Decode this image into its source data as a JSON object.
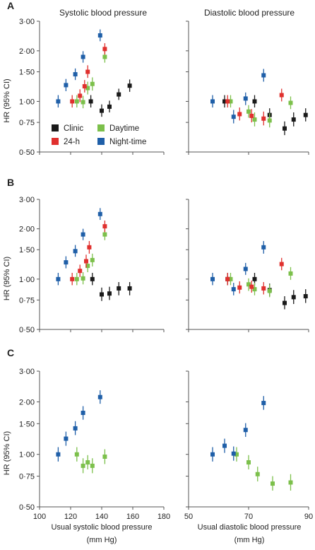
{
  "titles": {
    "left": "Systolic blood pressure",
    "right": "Diastolic blood pressure"
  },
  "panel_labels": [
    "A",
    "B",
    "C"
  ],
  "ylabel": "HR (95% CI)",
  "xlabels": {
    "left_line1": "Usual systolic blood pressure",
    "left_line2": "(mm Hg)",
    "right_line1": "Usual diastolic blood pressure",
    "right_line2": "(mm Hg)"
  },
  "legend": [
    {
      "key": "clinic",
      "label": "Clinic",
      "color": "#1a1a1a"
    },
    {
      "key": "daytime",
      "label": "Daytime",
      "color": "#7cc04b"
    },
    {
      "key": "h24",
      "label": "24-h",
      "color": "#e0302e"
    },
    {
      "key": "night",
      "label": "Night-time",
      "color": "#1f5fa8"
    }
  ],
  "chart_data": [
    {
      "type": "scatter",
      "panel": "A",
      "variable": "systolic",
      "xlim": [
        100,
        180
      ],
      "ylim": [
        0.5,
        3.0
      ],
      "ylog": true,
      "xticks": [
        100,
        120,
        140,
        160,
        180
      ],
      "yticks": [
        {
          "v": 0.5,
          "label": "0·50"
        },
        {
          "v": 0.75,
          "label": "0·75"
        },
        {
          "v": 1.0,
          "label": "1·00"
        },
        {
          "v": 1.5,
          "label": "1·50"
        },
        {
          "v": 2.0,
          "label": "2·00"
        },
        {
          "v": 3.0,
          "label": "3·00"
        }
      ],
      "series": [
        {
          "key": "clinic",
          "points": [
            [
              133,
              1.0,
              0.92,
              1.09
            ],
            [
              140,
              0.88,
              0.81,
              0.96
            ],
            [
              145,
              0.93,
              0.86,
              1.01
            ],
            [
              151,
              1.1,
              1.02,
              1.19
            ],
            [
              158,
              1.24,
              1.14,
              1.35
            ]
          ]
        },
        {
          "key": "daytime",
          "points": [
            [
              124,
              1.0,
              0.92,
              1.09
            ],
            [
              128,
              0.99,
              0.91,
              1.08
            ],
            [
              131,
              1.2,
              1.1,
              1.31
            ],
            [
              134,
              1.27,
              1.16,
              1.39
            ],
            [
              142,
              1.84,
              1.7,
              2.0
            ]
          ]
        },
        {
          "key": "h24",
          "points": [
            [
              121,
              1.0,
              0.92,
              1.09
            ],
            [
              126,
              1.08,
              0.99,
              1.18
            ],
            [
              129,
              1.23,
              1.13,
              1.34
            ],
            [
              131,
              1.5,
              1.38,
              1.64
            ],
            [
              142,
              2.05,
              1.9,
              2.22
            ]
          ]
        },
        {
          "key": "night",
          "points": [
            [
              112,
              1.0,
              0.92,
              1.09
            ],
            [
              117,
              1.25,
              1.15,
              1.36
            ],
            [
              123,
              1.45,
              1.34,
              1.57
            ],
            [
              128,
              1.84,
              1.7,
              1.99
            ],
            [
              139,
              2.47,
              2.28,
              2.68
            ]
          ]
        }
      ]
    },
    {
      "type": "scatter",
      "panel": "A",
      "variable": "diastolic",
      "xlim": [
        50,
        90
      ],
      "ylim": [
        0.5,
        3.0
      ],
      "ylog": true,
      "xticks": [
        50,
        70,
        90
      ],
      "yticks": [
        {
          "v": 0.5,
          "label": "0·50"
        },
        {
          "v": 0.75,
          "label": "0·75"
        },
        {
          "v": 1.0,
          "label": "1·00"
        },
        {
          "v": 1.5,
          "label": "1·50"
        },
        {
          "v": 2.0,
          "label": "2·00"
        },
        {
          "v": 3.0,
          "label": "3·00"
        }
      ],
      "series": [
        {
          "key": "clinic",
          "points": [
            [
              62,
              1.0,
              0.92,
              1.09
            ],
            [
              72,
              1.0,
              0.92,
              1.09
            ],
            [
              77,
              0.83,
              0.76,
              0.91
            ],
            [
              82,
              0.69,
              0.63,
              0.76
            ],
            [
              85,
              0.78,
              0.71,
              0.86
            ],
            [
              89,
              0.83,
              0.76,
              0.91
            ]
          ]
        },
        {
          "key": "daytime",
          "points": [
            [
              64,
              1.0,
              0.92,
              1.09
            ],
            [
              70,
              0.87,
              0.8,
              0.95
            ],
            [
              72,
              0.78,
              0.71,
              0.86
            ],
            [
              77,
              0.77,
              0.7,
              0.85
            ],
            [
              84,
              0.98,
              0.9,
              1.07
            ]
          ]
        },
        {
          "key": "h24",
          "points": [
            [
              63,
              1.0,
              0.92,
              1.09
            ],
            [
              67,
              0.84,
              0.77,
              0.92
            ],
            [
              71,
              0.82,
              0.75,
              0.9
            ],
            [
              75,
              0.79,
              0.72,
              0.87
            ],
            [
              81,
              1.09,
              1.0,
              1.19
            ]
          ]
        },
        {
          "key": "night",
          "points": [
            [
              58,
              1.0,
              0.92,
              1.09
            ],
            [
              65,
              0.81,
              0.74,
              0.89
            ],
            [
              69,
              1.04,
              0.95,
              1.13
            ],
            [
              75,
              1.43,
              1.31,
              1.56
            ]
          ]
        }
      ]
    },
    {
      "type": "scatter",
      "panel": "B",
      "variable": "systolic",
      "xlim": [
        100,
        180
      ],
      "ylim": [
        0.5,
        3.0
      ],
      "ylog": true,
      "xticks": [
        100,
        120,
        140,
        160,
        180
      ],
      "yticks": [
        {
          "v": 0.5,
          "label": "0·50"
        },
        {
          "v": 0.75,
          "label": "0·75"
        },
        {
          "v": 1.0,
          "label": "1·00"
        },
        {
          "v": 1.5,
          "label": "1·50"
        },
        {
          "v": 2.0,
          "label": "2·00"
        },
        {
          "v": 3.0,
          "label": "3·00"
        }
      ],
      "series": [
        {
          "key": "clinic",
          "points": [
            [
              134,
              1.0,
              0.92,
              1.09
            ],
            [
              140,
              0.81,
              0.74,
              0.89
            ],
            [
              145,
              0.82,
              0.75,
              0.9
            ],
            [
              151,
              0.88,
              0.8,
              0.96
            ],
            [
              158,
              0.88,
              0.8,
              0.96
            ]
          ]
        },
        {
          "key": "daytime",
          "points": [
            [
              124,
              1.0,
              0.92,
              1.09
            ],
            [
              128,
              1.01,
              0.93,
              1.1
            ],
            [
              131,
              1.2,
              1.1,
              1.31
            ],
            [
              134,
              1.3,
              1.19,
              1.42
            ],
            [
              142,
              1.85,
              1.71,
              2.01
            ]
          ]
        },
        {
          "key": "h24",
          "points": [
            [
              121,
              1.0,
              0.92,
              1.09
            ],
            [
              126,
              1.12,
              1.03,
              1.22
            ],
            [
              130,
              1.28,
              1.17,
              1.4
            ],
            [
              132,
              1.55,
              1.42,
              1.69
            ],
            [
              142,
              2.07,
              1.91,
              2.24
            ]
          ]
        },
        {
          "key": "night",
          "points": [
            [
              112,
              1.0,
              0.92,
              1.09
            ],
            [
              117,
              1.26,
              1.16,
              1.37
            ],
            [
              123,
              1.47,
              1.36,
              1.6
            ],
            [
              128,
              1.85,
              1.71,
              2.0
            ],
            [
              139,
              2.45,
              2.26,
              2.66
            ]
          ]
        }
      ]
    },
    {
      "type": "scatter",
      "panel": "B",
      "variable": "diastolic",
      "xlim": [
        50,
        90
      ],
      "ylim": [
        0.5,
        3.0
      ],
      "ylog": true,
      "xticks": [
        50,
        70,
        90
      ],
      "yticks": [
        {
          "v": 0.5,
          "label": "0·50"
        },
        {
          "v": 0.75,
          "label": "0·75"
        },
        {
          "v": 1.0,
          "label": "1·00"
        },
        {
          "v": 1.5,
          "label": "1·50"
        },
        {
          "v": 2.0,
          "label": "2·00"
        },
        {
          "v": 3.0,
          "label": "3·00"
        }
      ],
      "series": [
        {
          "key": "clinic",
          "points": [
            [
              63,
              1.0,
              0.92,
              1.09
            ],
            [
              72,
              1.0,
              0.92,
              1.09
            ],
            [
              77,
              0.86,
              0.79,
              0.94
            ],
            [
              82,
              0.72,
              0.66,
              0.79
            ],
            [
              85,
              0.78,
              0.71,
              0.86
            ],
            [
              89,
              0.79,
              0.72,
              0.87
            ]
          ]
        },
        {
          "key": "daytime",
          "points": [
            [
              64,
              1.0,
              0.92,
              1.09
            ],
            [
              70,
              0.93,
              0.85,
              1.01
            ],
            [
              72,
              0.87,
              0.8,
              0.95
            ],
            [
              77,
              0.85,
              0.78,
              0.93
            ],
            [
              84,
              1.08,
              0.99,
              1.18
            ]
          ]
        },
        {
          "key": "h24",
          "points": [
            [
              63,
              1.0,
              0.92,
              1.09
            ],
            [
              67,
              0.89,
              0.82,
              0.97
            ],
            [
              71,
              0.9,
              0.83,
              0.98
            ],
            [
              75,
              0.88,
              0.81,
              0.96
            ],
            [
              81,
              1.23,
              1.13,
              1.34
            ]
          ]
        },
        {
          "key": "night",
          "points": [
            [
              58,
              1.0,
              0.92,
              1.09
            ],
            [
              65,
              0.87,
              0.8,
              0.95
            ],
            [
              69,
              1.15,
              1.06,
              1.25
            ],
            [
              75,
              1.55,
              1.42,
              1.69
            ]
          ]
        }
      ]
    },
    {
      "type": "scatter",
      "panel": "C",
      "variable": "systolic",
      "xlim": [
        100,
        180
      ],
      "ylim": [
        0.5,
        3.0
      ],
      "ylog": true,
      "xticks": [
        100,
        120,
        140,
        160,
        180
      ],
      "yticks": [
        {
          "v": 0.5,
          "label": "0·50"
        },
        {
          "v": 0.75,
          "label": "0·75"
        },
        {
          "v": 1.0,
          "label": "1·00"
        },
        {
          "v": 1.5,
          "label": "1·50"
        },
        {
          "v": 2.0,
          "label": "2·00"
        },
        {
          "v": 3.0,
          "label": "3·00"
        }
      ],
      "series": [
        {
          "key": "daytime",
          "points": [
            [
              124,
              1.0,
              0.91,
              1.1
            ],
            [
              128,
              0.86,
              0.78,
              0.95
            ],
            [
              131,
              0.9,
              0.82,
              0.99
            ],
            [
              134,
              0.86,
              0.78,
              0.95
            ],
            [
              142,
              0.97,
              0.88,
              1.07
            ]
          ]
        },
        {
          "key": "night",
          "points": [
            [
              112,
              1.0,
              0.91,
              1.1
            ],
            [
              117,
              1.23,
              1.12,
              1.35
            ],
            [
              123,
              1.41,
              1.29,
              1.55
            ],
            [
              128,
              1.73,
              1.58,
              1.89
            ],
            [
              139,
              2.13,
              1.95,
              2.33
            ]
          ]
        }
      ]
    },
    {
      "type": "scatter",
      "panel": "C",
      "variable": "diastolic",
      "xlim": [
        50,
        90
      ],
      "ylim": [
        0.5,
        3.0
      ],
      "ylog": true,
      "xticks": [
        50,
        70,
        90
      ],
      "yticks": [
        {
          "v": 0.5,
          "label": "0·50"
        },
        {
          "v": 0.75,
          "label": "0·75"
        },
        {
          "v": 1.0,
          "label": "1·00"
        },
        {
          "v": 1.5,
          "label": "1·50"
        },
        {
          "v": 2.0,
          "label": "2·00"
        },
        {
          "v": 3.0,
          "label": "3·00"
        }
      ],
      "series": [
        {
          "key": "daytime",
          "points": [
            [
              66,
              1.0,
              0.91,
              1.1
            ],
            [
              70,
              0.9,
              0.82,
              0.99
            ],
            [
              73,
              0.77,
              0.7,
              0.85
            ],
            [
              78,
              0.68,
              0.62,
              0.75
            ],
            [
              84,
              0.69,
              0.62,
              0.77
            ]
          ]
        },
        {
          "key": "night",
          "points": [
            [
              58,
              1.0,
              0.91,
              1.1
            ],
            [
              62,
              1.12,
              1.02,
              1.23
            ],
            [
              65,
              1.01,
              0.92,
              1.11
            ],
            [
              69,
              1.38,
              1.26,
              1.51
            ],
            [
              75,
              1.97,
              1.8,
              2.16
            ]
          ]
        }
      ]
    }
  ]
}
